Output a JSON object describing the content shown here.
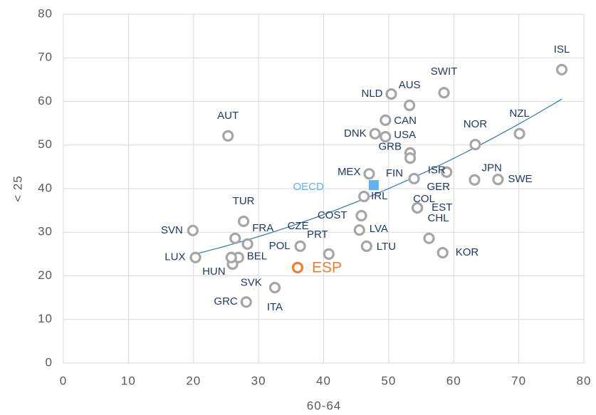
{
  "chart_data": {
    "type": "scatter",
    "x_label": "60-64",
    "y_label": "< 25",
    "xlim": [
      0,
      80
    ],
    "xticks": [
      0,
      10,
      20,
      30,
      40,
      50,
      60,
      70,
      80
    ],
    "ylim": [
      0,
      80
    ],
    "yticks": [
      0,
      10,
      20,
      30,
      40,
      50,
      60,
      70,
      80
    ],
    "grid": true,
    "color": "#a6a6a6",
    "trendline": true,
    "trendline_color": "#2e75b6",
    "points": [
      {
        "label": "ISL",
        "x": 76.6,
        "y": 67.3
      },
      {
        "label": "SWIT",
        "x": 58.5,
        "y": 62.0
      },
      {
        "label": "AUS",
        "x": 53.2,
        "y": 59.1
      },
      {
        "label": "NLD",
        "x": 50.4,
        "y": 61.7
      },
      {
        "label": "CAN",
        "x": 49.5,
        "y": 55.7
      },
      {
        "label": "DNK",
        "x": 47.9,
        "y": 52.6
      },
      {
        "label": "USA",
        "x": 49.5,
        "y": 51.9
      },
      {
        "label": "AUT",
        "x": 25.3,
        "y": 52.1
      },
      {
        "label": "NOR",
        "x": 63.3,
        "y": 50.1
      },
      {
        "label": "NZL",
        "x": 70.1,
        "y": 52.6
      },
      {
        "label": "GRB",
        "x": 53.3,
        "y": 48.2
      },
      {
        "label": "FIN",
        "x": 53.3,
        "y": 47.0
      },
      {
        "label": "ISR",
        "x": 58.9,
        "y": 43.8
      },
      {
        "label": "GER",
        "x": 53.9,
        "y": 42.3
      },
      {
        "label": "JPN",
        "x": 63.2,
        "y": 42.0
      },
      {
        "label": "SWE",
        "x": 66.8,
        "y": 42.1
      },
      {
        "label": "MEX",
        "x": 47.0,
        "y": 43.4
      },
      {
        "label": "OECD",
        "x": 47.7,
        "y": 40.8,
        "color": "#5eb3f0",
        "marker": "square"
      },
      {
        "label": "IRL",
        "x": 46.2,
        "y": 38.2
      },
      {
        "label": "COL",
        "x": 54.4,
        "y": 35.6
      },
      {
        "label": "EST",
        "x": 54.4,
        "y": 35.6
      },
      {
        "label": "CHL",
        "x": 56.2,
        "y": 28.6
      },
      {
        "label": "KOR",
        "x": 58.3,
        "y": 25.3
      },
      {
        "label": "COST",
        "x": 45.8,
        "y": 33.8
      },
      {
        "label": "LVA",
        "x": 45.5,
        "y": 30.5
      },
      {
        "label": "LTU",
        "x": 46.6,
        "y": 26.8
      },
      {
        "label": "PRT",
        "x": 40.8,
        "y": 25.0
      },
      {
        "label": "POL",
        "x": 36.4,
        "y": 26.8
      },
      {
        "label": "CZE",
        "x": 28.3,
        "y": 27.3
      },
      {
        "label": "FRA",
        "x": 26.4,
        "y": 28.6
      },
      {
        "label": "TUR",
        "x": 27.7,
        "y": 32.5
      },
      {
        "label": "SVN",
        "x": 19.9,
        "y": 30.4
      },
      {
        "label": "LUX",
        "x": 20.3,
        "y": 24.2
      },
      {
        "label": "BEL",
        "x": 26.9,
        "y": 24.2
      },
      {
        "label": "HUN",
        "x": 26.0,
        "y": 22.7
      },
      {
        "label": "SVK",
        "x": 25.8,
        "y": 24.2
      },
      {
        "label": "ITA",
        "x": 32.5,
        "y": 17.3
      },
      {
        "label": "GRC",
        "x": 28.1,
        "y": 14.0
      },
      {
        "label": "ESP",
        "x": 36.0,
        "y": 21.9,
        "color": "#ed7d31"
      }
    ]
  }
}
